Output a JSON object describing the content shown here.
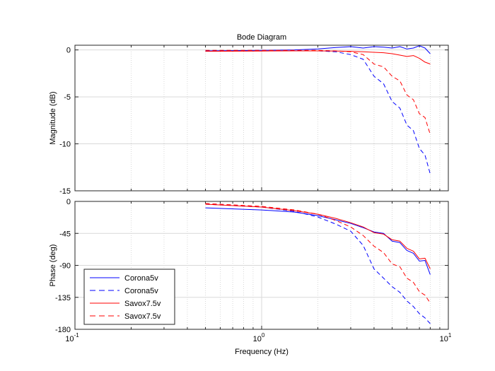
{
  "chart_data": [
    {
      "type": "line",
      "title": "Bode Diagram",
      "xlabel": "",
      "ylabel": "Magnitude (dB)",
      "xscale": "log",
      "xlim": [
        0.1,
        10
      ],
      "ylim": [
        -15,
        0.5
      ],
      "yticks": [
        0,
        -5,
        -10,
        -15
      ],
      "ytick_labels": [
        "0",
        "-5",
        "-10",
        "-15"
      ],
      "grid": true,
      "series": [
        {
          "name": "Corona5v",
          "style": "solid",
          "color": "#0000ff",
          "x": [
            0.5,
            1,
            1.5,
            2,
            2.5,
            3,
            3.5,
            4,
            4.5,
            5,
            5.5,
            6,
            6.5,
            7,
            7.5,
            8
          ],
          "y": [
            -0.1,
            -0.05,
            0,
            0.1,
            0.25,
            0.35,
            0.2,
            0.35,
            0.3,
            0.2,
            0.35,
            0.1,
            0.2,
            0.45,
            0.2,
            -0.4
          ]
        },
        {
          "name": "Corona5v",
          "style": "dashed",
          "color": "#0000ff",
          "x": [
            0.5,
            1,
            1.5,
            2,
            2.5,
            3,
            3.5,
            4,
            4.5,
            5,
            5.5,
            6,
            6.5,
            7,
            7.5,
            8
          ],
          "y": [
            -0.1,
            -0.05,
            -0.05,
            -0.1,
            -0.2,
            -0.5,
            -1.0,
            -2.8,
            -3.6,
            -5.5,
            -6.2,
            -8.0,
            -8.6,
            -10.5,
            -11.2,
            -13.2
          ]
        },
        {
          "name": "Savox7.5v",
          "style": "solid",
          "color": "#ff0000",
          "x": [
            0.5,
            1,
            1.5,
            2,
            2.5,
            3,
            3.5,
            4,
            4.5,
            5,
            5.5,
            6,
            6.5,
            7,
            7.5,
            8
          ],
          "y": [
            -0.15,
            -0.12,
            -0.1,
            -0.1,
            -0.12,
            -0.15,
            -0.2,
            -0.25,
            -0.3,
            -0.4,
            -0.55,
            -0.7,
            -0.6,
            -0.9,
            -1.3,
            -1.5
          ]
        },
        {
          "name": "Savox7.5v",
          "style": "dashed",
          "color": "#ff0000",
          "x": [
            0.5,
            1,
            1.5,
            2,
            2.5,
            3,
            3.5,
            4,
            4.5,
            5,
            5.5,
            6,
            6.5,
            7,
            7.5,
            8
          ],
          "y": [
            -0.05,
            -0.05,
            -0.05,
            -0.05,
            -0.1,
            -0.2,
            -0.5,
            -1.5,
            -1.8,
            -2.8,
            -3.3,
            -4.8,
            -5.3,
            -6.8,
            -7.2,
            -9.0
          ]
        }
      ]
    },
    {
      "type": "line",
      "title": "",
      "xlabel": "Frequency  (Hz)",
      "ylabel": "Phase (deg)",
      "xscale": "log",
      "xlim": [
        0.1,
        10
      ],
      "xtick_labels": [
        {
          "base": "10",
          "exp": "-1"
        },
        {
          "base": "10",
          "exp": "0"
        },
        {
          "base": "10",
          "exp": "1"
        }
      ],
      "ylim": [
        -180,
        0
      ],
      "yticks": [
        0,
        -45,
        -90,
        -135,
        -180
      ],
      "ytick_labels": [
        "0",
        "-45",
        "-90",
        "-135",
        "-180"
      ],
      "grid": true,
      "legend_position": "bottom-left",
      "series": [
        {
          "name": "Corona5v",
          "style": "solid",
          "color": "#0000ff",
          "x": [
            0.5,
            1,
            1.5,
            2,
            2.5,
            3,
            3.5,
            4,
            4.5,
            5,
            5.5,
            6,
            6.5,
            7,
            7.5,
            8
          ],
          "y": [
            -9,
            -12,
            -15,
            -20,
            -26,
            -31,
            -37,
            -43,
            -45,
            -56,
            -58,
            -69,
            -73,
            -84,
            -83,
            -103
          ]
        },
        {
          "name": "Corona5v",
          "style": "dashed",
          "color": "#0000ff",
          "x": [
            0.5,
            1,
            1.5,
            2,
            2.5,
            3,
            3.5,
            4,
            4.5,
            5,
            5.5,
            6,
            6.5,
            7,
            7.5,
            8
          ],
          "y": [
            -4,
            -8,
            -14,
            -22,
            -32,
            -42,
            -62,
            -95,
            -108,
            -120,
            -128,
            -140,
            -148,
            -158,
            -164,
            -172
          ]
        },
        {
          "name": "Savox7.5v",
          "style": "solid",
          "color": "#ff0000",
          "x": [
            0.5,
            1,
            1.5,
            2,
            2.5,
            3,
            3.5,
            4,
            4.5,
            5,
            5.5,
            6,
            6.5,
            7,
            7.5,
            8
          ],
          "y": [
            -4,
            -8,
            -13,
            -18,
            -24,
            -30,
            -36,
            -44,
            -46,
            -54,
            -56,
            -66,
            -70,
            -81,
            -80,
            -95
          ]
        },
        {
          "name": "Savox7.5v",
          "style": "dashed",
          "color": "#ff0000",
          "x": [
            0.5,
            1,
            1.5,
            2,
            2.5,
            3,
            3.5,
            4,
            4.5,
            5,
            5.5,
            6,
            6.5,
            7,
            7.5,
            8
          ],
          "y": [
            -3,
            -7,
            -12,
            -18,
            -27,
            -36,
            -48,
            -63,
            -72,
            -88,
            -92,
            -108,
            -114,
            -127,
            -132,
            -143
          ]
        }
      ]
    }
  ]
}
